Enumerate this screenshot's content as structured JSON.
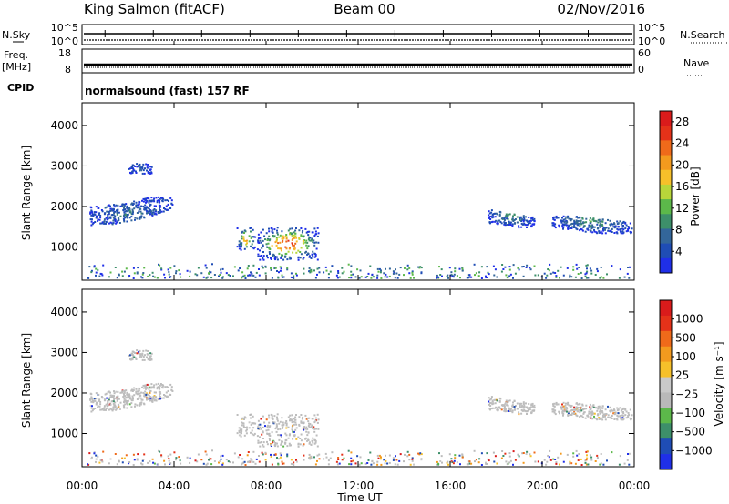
{
  "header": {
    "station": "King Salmon (fitACF)",
    "beam": "Beam 00",
    "date": "02/Nov/2016",
    "cpid_label": "CPID",
    "cpid_value": "normalsound (fast) 157 RF"
  },
  "top_panels": {
    "nsky": {
      "label": "N.Sky",
      "max_label": "10^5",
      "min_label": "10^0"
    },
    "nsearch": {
      "label": "N.Search",
      "max_label": "10^5",
      "min_label": "10^0"
    },
    "freq": {
      "label_line1": "Freq.",
      "label_line2": "[MHz]",
      "max": "18",
      "min": "8"
    },
    "nave": {
      "label": "Nave",
      "max": "60",
      "min": "0"
    }
  },
  "chart_data": [
    {
      "type": "heatmap",
      "name": "power",
      "ylabel": "Slant Range [km]",
      "xlabel": "Time UT",
      "x_ticks": [
        "00:00",
        "04:00",
        "08:00",
        "12:00",
        "16:00",
        "20:00",
        "00:00"
      ],
      "x_range_hours": [
        0,
        24
      ],
      "y_ticks": [
        1000,
        2000,
        3000,
        4000
      ],
      "ylim": [
        180,
        4560
      ],
      "colorbar": {
        "label": "Power [dB]",
        "tick_labels": [
          "4",
          "8",
          "12",
          "16",
          "20",
          "24",
          "28"
        ],
        "colors": [
          "#1f2fe8",
          "#1f4db5",
          "#33669a",
          "#3d8f6a",
          "#5cb84a",
          "#b8d63a",
          "#f6c02a",
          "#f39a1e",
          "#ef6a1a",
          "#e43219",
          "#da1b1b"
        ]
      },
      "echo_regions": [
        {
          "t": [
            0.3,
            3.9
          ],
          "r": [
            1380,
            2250
          ],
          "max_level": 2
        },
        {
          "t": [
            2.0,
            3.0
          ],
          "r": [
            2700,
            3200
          ],
          "max_level": 1
        },
        {
          "t": [
            6.7,
            7.5
          ],
          "r": [
            950,
            1500
          ],
          "max_level": 8
        },
        {
          "t": [
            7.6,
            10.3
          ],
          "r": [
            700,
            1500
          ],
          "max_level": 10
        },
        {
          "t": [
            17.6,
            19.7
          ],
          "r": [
            1500,
            2100
          ],
          "max_level": 3
        },
        {
          "t": [
            20.4,
            23.9
          ],
          "r": [
            1350,
            2000
          ],
          "max_level": 3
        },
        {
          "t": [
            0.2,
            23.8
          ],
          "r": [
            220,
            600
          ],
          "max_level": 4
        }
      ]
    },
    {
      "type": "heatmap",
      "name": "velocity",
      "ylabel": "Slant Range [km]",
      "xlabel": "Time UT",
      "x_ticks": [
        "00:00",
        "04:00",
        "08:00",
        "12:00",
        "16:00",
        "20:00",
        "00:00"
      ],
      "x_range_hours": [
        0,
        24
      ],
      "y_ticks": [
        1000,
        2000,
        3000,
        4000
      ],
      "ylim": [
        180,
        4560
      ],
      "colorbar": {
        "label": "Velocity [m s⁻¹]",
        "tick_labels": [
          "1000",
          "500",
          "100",
          "25",
          "−25",
          "−100",
          "−500",
          "−1000"
        ],
        "colors": [
          "#1f2fe8",
          "#1f4db5",
          "#3d8f6a",
          "#5cb84a",
          "#b9b9b9",
          "#c9c9c9",
          "#f6c02a",
          "#f39a1e",
          "#ef6a1a",
          "#e43219",
          "#da1b1b"
        ]
      },
      "echo_regions": [
        {
          "t": [
            0.3,
            3.9
          ],
          "r": [
            1380,
            2250
          ],
          "dominant": "ground-scatter"
        },
        {
          "t": [
            6.7,
            10.3
          ],
          "r": [
            700,
            1500
          ],
          "dominant": "ground-scatter"
        },
        {
          "t": [
            17.6,
            19.7
          ],
          "r": [
            1500,
            2100
          ],
          "dominant": "ground-scatter"
        },
        {
          "t": [
            20.4,
            23.9
          ],
          "r": [
            1350,
            2000
          ],
          "dominant": "ground-scatter"
        },
        {
          "t": [
            0.2,
            23.8
          ],
          "r": [
            220,
            600
          ],
          "dominant": "mixed"
        }
      ]
    }
  ]
}
